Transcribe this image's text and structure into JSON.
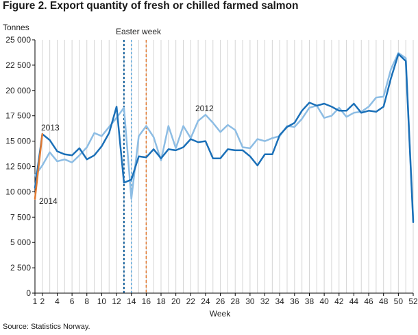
{
  "figure_title": "Figure 2. Export quantity of fresh or chilled farmed salmon",
  "source": "Source: Statistics Norway.",
  "chart_data": {
    "type": "line",
    "title": "Figure 2. Export quantity of fresh or chilled farmed salmon",
    "xlabel": "Week",
    "ylabel": "Tonnes",
    "xlim": [
      1,
      52
    ],
    "ylim": [
      0,
      25000
    ],
    "x_ticks": [
      1,
      2,
      4,
      6,
      8,
      10,
      12,
      14,
      16,
      18,
      20,
      22,
      24,
      26,
      28,
      30,
      32,
      34,
      36,
      38,
      40,
      42,
      44,
      46,
      48,
      50,
      52
    ],
    "y_ticks": [
      0,
      2500,
      5000,
      7500,
      10000,
      12500,
      15000,
      17500,
      20000,
      22500,
      25000
    ],
    "y_tick_labels": [
      "0",
      "2 500",
      "5 000",
      "7 500",
      "10 000",
      "12 500",
      "15 000",
      "17 500",
      "20 000",
      "22 500",
      "25 000"
    ],
    "grid": "vertical",
    "colors": {
      "2012": "#8dbde4",
      "2013": "#1b70b8",
      "2014": "#e07a32",
      "easter_2012": "#5fa8da",
      "easter_2013": "#0e5c99",
      "easter_2014": "#e07a32"
    },
    "series": [
      {
        "name": "2012",
        "x": [
          1,
          2,
          3,
          4,
          5,
          6,
          7,
          8,
          9,
          10,
          11,
          12,
          13,
          14,
          15,
          16,
          17,
          18,
          19,
          20,
          21,
          22,
          23,
          24,
          25,
          26,
          27,
          28,
          29,
          30,
          31,
          32,
          33,
          34,
          35,
          36,
          37,
          38,
          39,
          40,
          41,
          42,
          43,
          44,
          45,
          46,
          47,
          48,
          49,
          50,
          51,
          52
        ],
        "y": [
          11600,
          12600,
          13900,
          13000,
          13200,
          12900,
          13600,
          14400,
          15800,
          15500,
          16400,
          17300,
          18300,
          9300,
          15500,
          16500,
          15400,
          13100,
          16500,
          14300,
          16500,
          15300,
          17000,
          17600,
          16800,
          15900,
          16600,
          16100,
          14400,
          14300,
          15200,
          15000,
          15300,
          15500,
          16500,
          16400,
          17200,
          18300,
          18500,
          17300,
          17500,
          18300,
          17400,
          17800,
          17900,
          18400,
          19300,
          19400,
          22100,
          23700,
          23200,
          7200
        ]
      },
      {
        "name": "2013",
        "x": [
          1,
          2,
          3,
          4,
          5,
          6,
          7,
          8,
          9,
          10,
          11,
          12,
          13,
          14,
          15,
          16,
          17,
          18,
          19,
          20,
          21,
          22,
          23,
          24,
          25,
          26,
          27,
          28,
          29,
          30,
          31,
          32,
          33,
          34,
          35,
          36,
          37,
          38,
          39,
          40,
          41,
          42,
          43,
          44,
          45,
          46,
          47,
          48,
          49,
          50,
          51,
          52
        ],
        "y": [
          10400,
          15700,
          15100,
          14000,
          13700,
          13600,
          14300,
          13200,
          13600,
          14500,
          15800,
          18400,
          10900,
          11200,
          13500,
          13400,
          14200,
          13300,
          14200,
          14100,
          14400,
          15200,
          14900,
          15000,
          13300,
          13300,
          14200,
          14100,
          14100,
          13500,
          12600,
          13700,
          13700,
          15600,
          16400,
          16800,
          18000,
          18800,
          18500,
          18700,
          18400,
          18000,
          18000,
          18700,
          17800,
          18000,
          17900,
          18400,
          21200,
          23600,
          22900,
          7000
        ]
      },
      {
        "name": "2014",
        "x": [
          1,
          2
        ],
        "y": [
          9300,
          15700
        ]
      }
    ],
    "annotations": [
      {
        "text": "Easter week",
        "x": 14
      },
      {
        "text": "2013",
        "x": 2,
        "y": 15700
      },
      {
        "text": "2012",
        "x": 24,
        "y": 17600
      },
      {
        "text": "2014",
        "x": 1,
        "y": 9300
      }
    ],
    "easter_weeks": [
      {
        "year": "2013",
        "week": 13
      },
      {
        "year": "2012",
        "week": 14
      },
      {
        "year": "2014",
        "week": 16
      }
    ]
  }
}
